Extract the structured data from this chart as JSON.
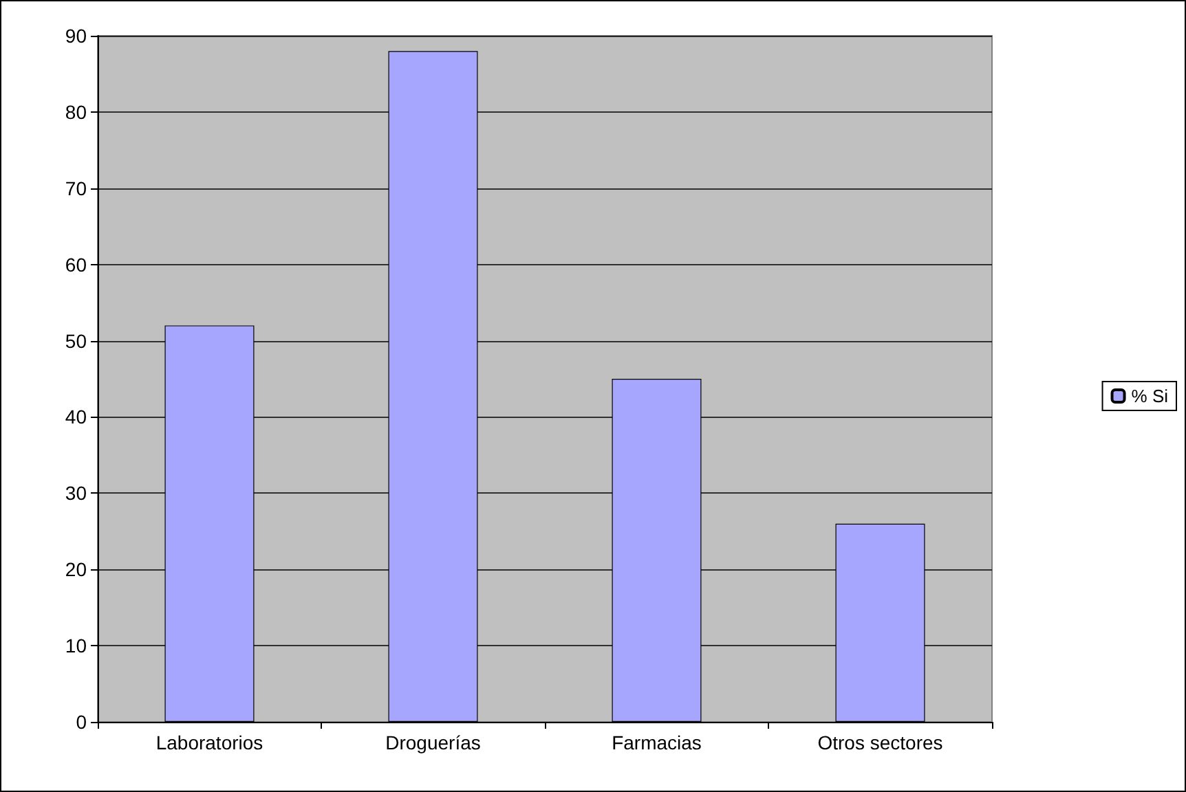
{
  "chart_data": {
    "type": "bar",
    "categories": [
      "Laboratorios",
      "Droguerías",
      "Farmacias",
      "Otros sectores"
    ],
    "series": [
      {
        "name": "% Si",
        "color": "#a6a6ff",
        "values": [
          52,
          88,
          45,
          26
        ]
      }
    ],
    "ylim": [
      0,
      90
    ],
    "yticks": [
      0,
      10,
      20,
      30,
      40,
      50,
      60,
      70,
      80,
      90
    ],
    "grid": "y",
    "legend": "right"
  }
}
